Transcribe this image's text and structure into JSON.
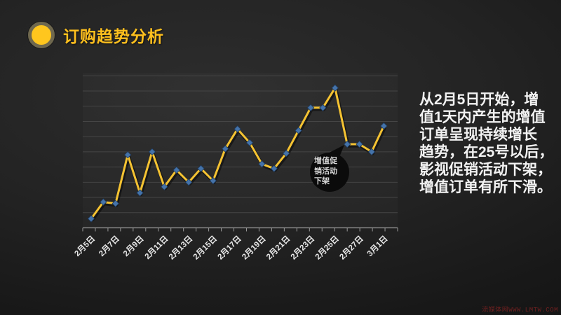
{
  "slide": {
    "title": "订购趋势分析",
    "title_color": "#ffc01e",
    "watermark": "流媒体网WWW.LMTW.COM"
  },
  "annotation": {
    "text": "从2月5日开始，增\n值1天内产生的增值\n订单呈现持续增长\n趋势，在25号以后，\n影视促销活动下架，\n增值订单有所下滑。"
  },
  "callout": {
    "text": "增值促销活动下架",
    "display": "增值促\n销活动\n下架",
    "attached_to": "2月26日"
  },
  "chart_data": {
    "type": "line",
    "title": "订购趋势分析",
    "xlabel": "",
    "ylabel": "",
    "y_axis_labels": "none",
    "ylim": [
      0,
      10
    ],
    "grid": "horizontal, 10 unlabeled gridlines",
    "legend": "none",
    "categories": [
      "2月5日",
      "2月6日",
      "2月7日",
      "2月8日",
      "2月9日",
      "2月10日",
      "2月11日",
      "2月12日",
      "2月13日",
      "2月14日",
      "2月15日",
      "2月16日",
      "2月17日",
      "2月18日",
      "2月19日",
      "2月20日",
      "2月21日",
      "2月22日",
      "2月23日",
      "2月24日",
      "2月25日",
      "2月26日",
      "2月27日",
      "2月28日",
      "3月1日"
    ],
    "x_tick_labels": [
      "2月5日",
      "2月7日",
      "2月9日",
      "2月11日",
      "2月13日",
      "2月15日",
      "2月17日",
      "2月19日",
      "2月21日",
      "2月23日",
      "2月25日",
      "2月27日",
      "3月1日"
    ],
    "series": [
      {
        "name": "增值订单",
        "values": [
          0.6,
          1.7,
          1.6,
          4.8,
          2.3,
          5.0,
          2.7,
          3.8,
          3.0,
          3.9,
          3.1,
          5.2,
          6.5,
          5.6,
          4.2,
          3.9,
          4.9,
          6.4,
          7.9,
          7.9,
          9.2,
          5.5,
          5.5,
          5.0,
          6.7
        ]
      }
    ],
    "colors": {
      "line": "#f5c332",
      "marker": "#4573a9",
      "marker_edge": "#1f3a5c",
      "gridline": "#454545",
      "axis": "#9a9a9a",
      "tick_label": "#e8e8e8",
      "callout_fill": "#0b0b0b"
    }
  }
}
